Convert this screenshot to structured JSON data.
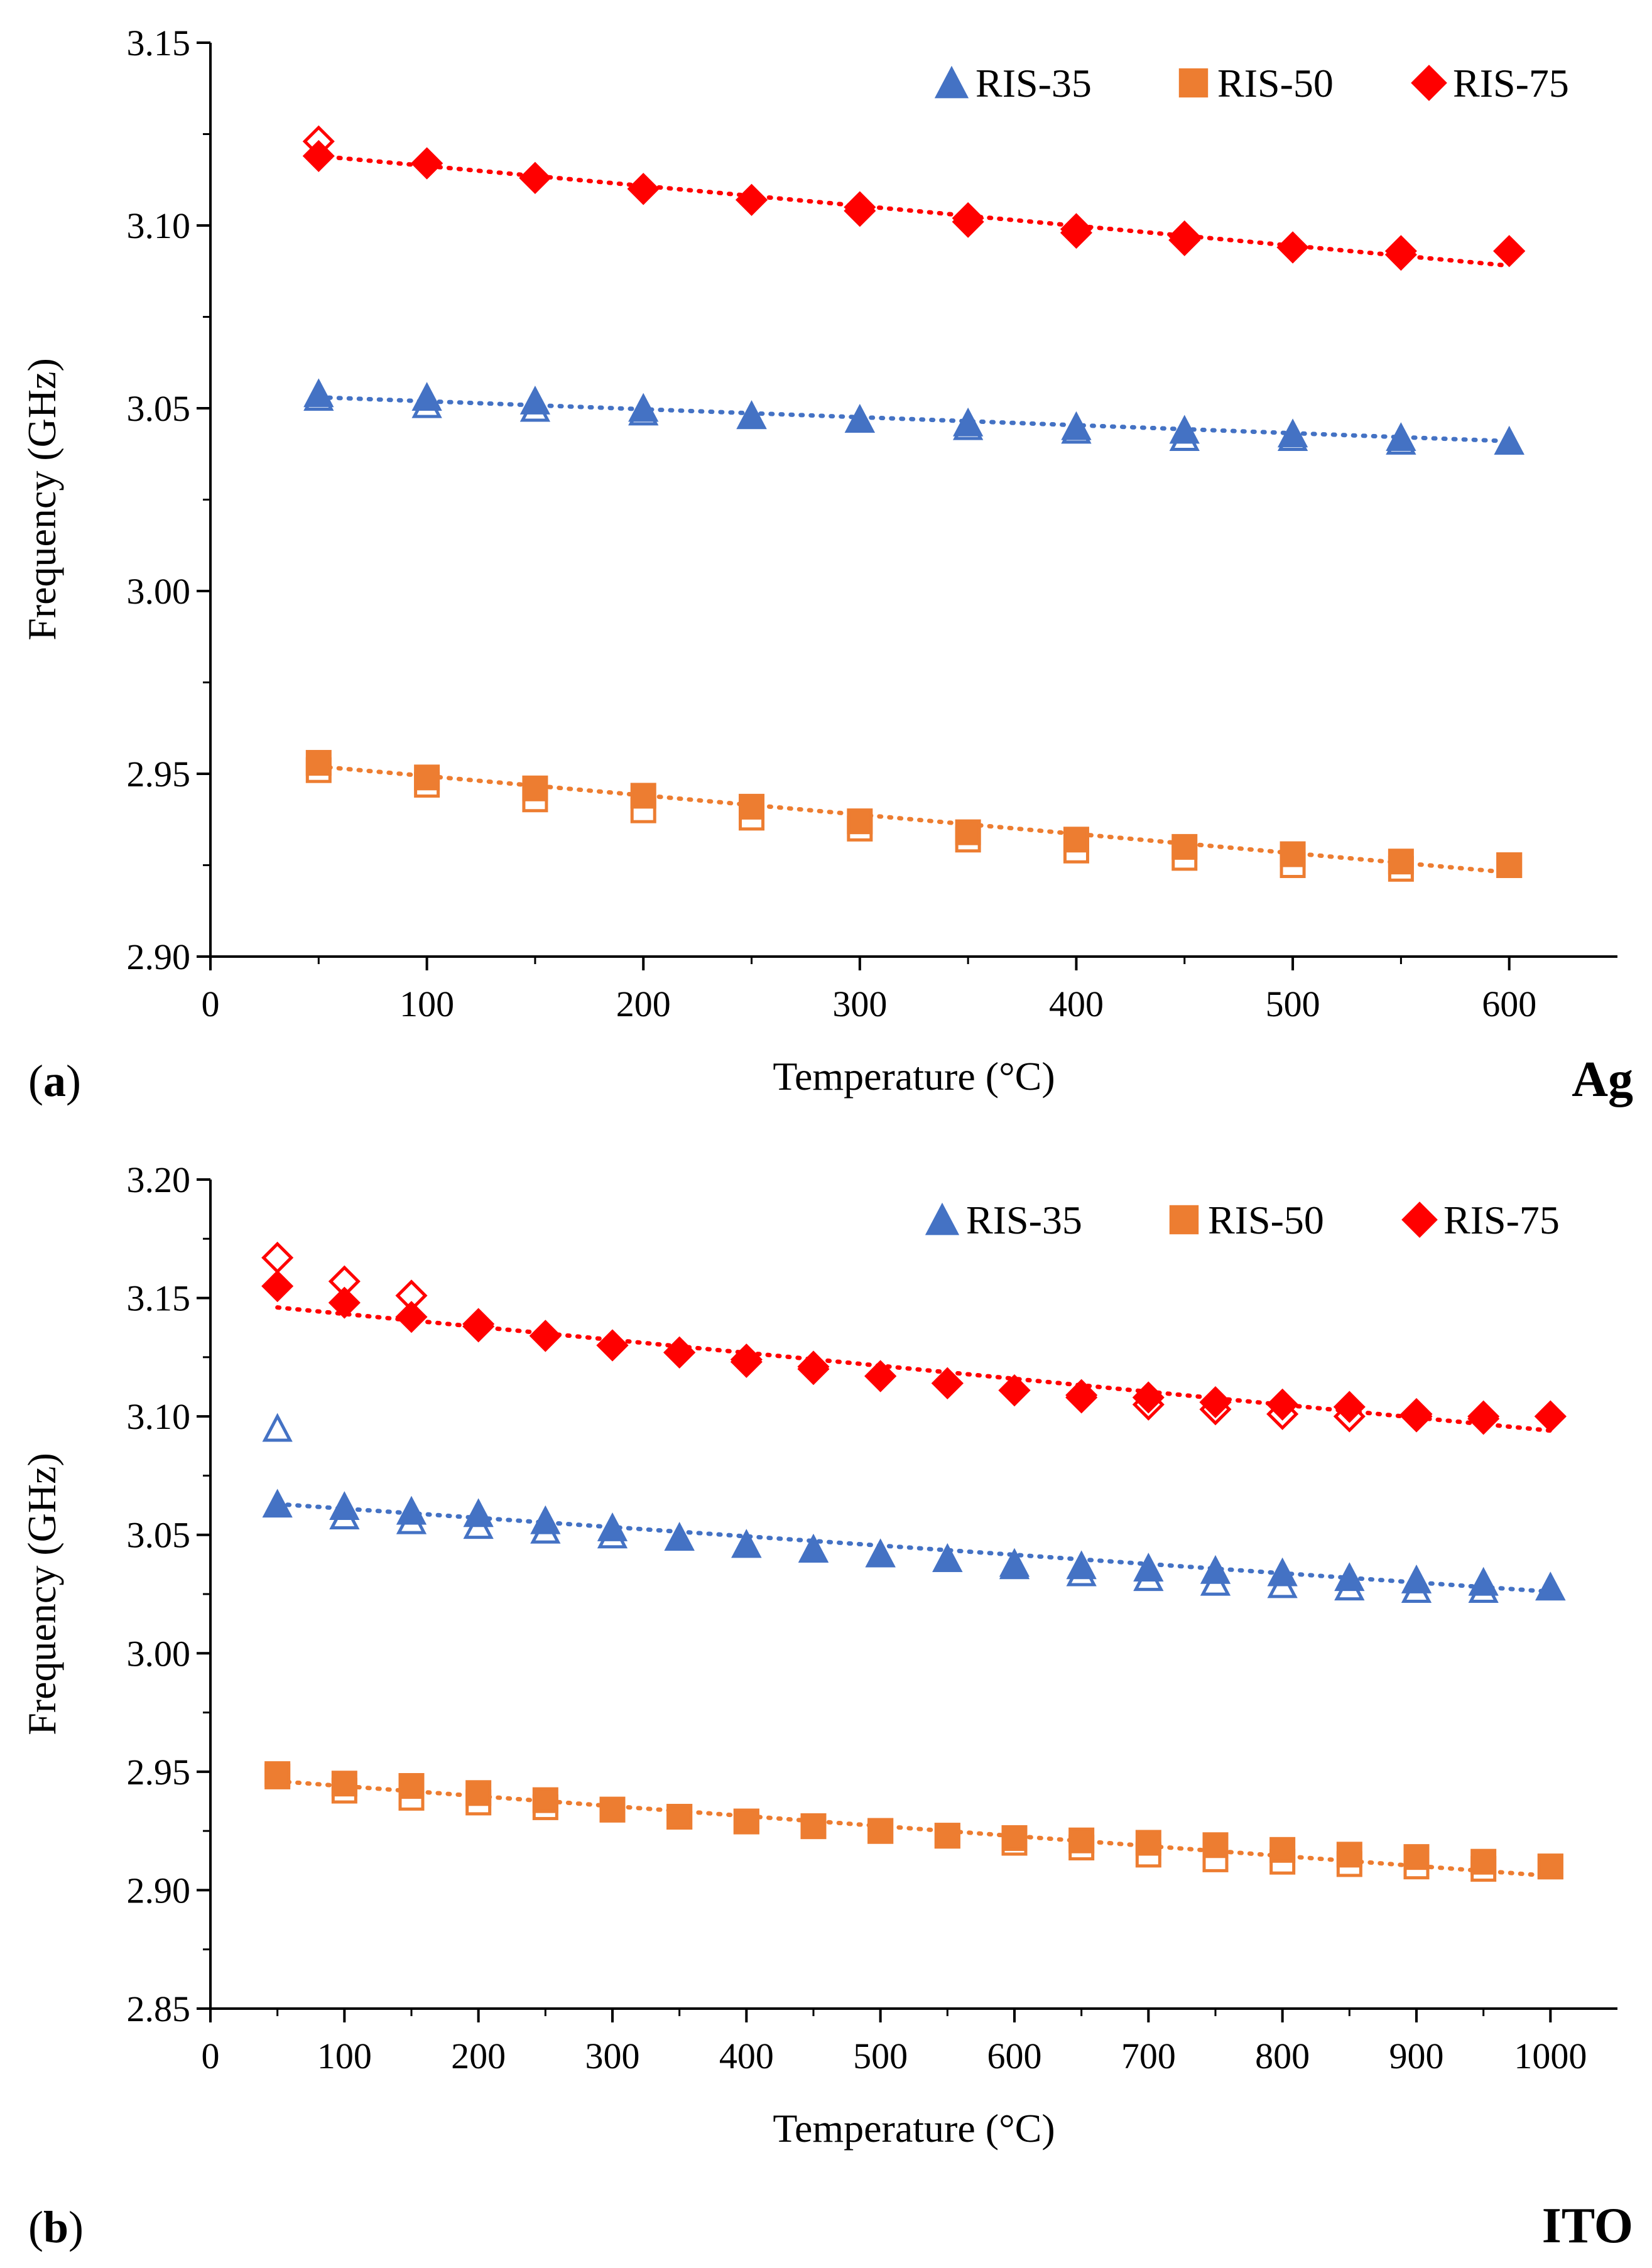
{
  "chart_data": [
    {
      "type": "scatter",
      "panel_label": "a",
      "material": "Ag",
      "xlabel": "Temperature (°C)",
      "ylabel": "Frequency (GHz)",
      "xlim": [
        0,
        650
      ],
      "ylim": [
        2.9,
        3.15
      ],
      "xticks": [
        "0",
        "100",
        "200",
        "300",
        "400",
        "500",
        "600"
      ],
      "yticks": [
        "2.90",
        "2.95",
        "3.00",
        "3.05",
        "3.10",
        "3.15"
      ],
      "legend_position": "top-right",
      "grid": false,
      "x": [
        50,
        100,
        150,
        200,
        250,
        300,
        350,
        400,
        450,
        500,
        550,
        600
      ],
      "series": [
        {
          "name": "RIS-35",
          "marker": "triangle",
          "color": "#4472C4",
          "filled": [
            3.054,
            3.053,
            3.052,
            3.05,
            3.048,
            3.047,
            3.046,
            3.045,
            3.044,
            3.043,
            3.042,
            3.041
          ],
          "hollow": [
            3.053,
            3.051,
            3.05,
            3.049,
            3.048,
            3.047,
            3.045,
            3.044,
            3.042,
            3.042,
            3.041,
            3.041
          ],
          "trend": [
            3.053,
            3.041
          ]
        },
        {
          "name": "RIS-50",
          "marker": "square",
          "color": "#ED7D31",
          "filled": [
            2.953,
            2.949,
            2.946,
            2.944,
            2.941,
            2.937,
            2.934,
            2.932,
            2.93,
            2.928,
            2.926,
            2.925
          ],
          "hollow": [
            2.951,
            2.947,
            2.943,
            2.94,
            2.938,
            2.935,
            2.932,
            2.929,
            2.927,
            2.925,
            2.924,
            2.925
          ],
          "trend": [
            2.952,
            2.923
          ]
        },
        {
          "name": "RIS-75",
          "marker": "diamond",
          "color": "#FF0000",
          "filled": [
            3.119,
            3.117,
            3.113,
            3.11,
            3.107,
            3.105,
            3.102,
            3.099,
            3.097,
            3.094,
            3.093,
            3.093
          ],
          "hollow": [
            3.123,
            3.117,
            3.113,
            3.11,
            3.107,
            3.104,
            3.101,
            3.098,
            3.096,
            3.094,
            3.092,
            3.093
          ],
          "trend": [
            3.119,
            3.089
          ]
        }
      ]
    },
    {
      "type": "scatter",
      "panel_label": "b",
      "material": "ITO",
      "xlabel": "Temperature (°C)",
      "ylabel": "Frequency (GHz)",
      "xlim": [
        0,
        1050
      ],
      "ylim": [
        2.85,
        3.2
      ],
      "xticks": [
        "0",
        "100",
        "200",
        "300",
        "400",
        "500",
        "600",
        "700",
        "800",
        "900",
        "1000"
      ],
      "yticks": [
        "2.85",
        "2.90",
        "2.95",
        "3.00",
        "3.05",
        "3.10",
        "3.15",
        "3.20"
      ],
      "legend_position": "top-right",
      "grid": false,
      "x": [
        50,
        100,
        150,
        200,
        250,
        300,
        350,
        400,
        450,
        500,
        550,
        600,
        650,
        700,
        750,
        800,
        850,
        900,
        950,
        1000
      ],
      "series": [
        {
          "name": "RIS-35",
          "marker": "triangle",
          "color": "#4472C4",
          "filled": [
            3.063,
            3.062,
            3.06,
            3.059,
            3.056,
            3.053,
            3.049,
            3.046,
            3.044,
            3.042,
            3.04,
            3.038,
            3.037,
            3.036,
            3.035,
            3.034,
            3.032,
            3.031,
            3.03,
            3.028
          ],
          "hollow": [
            3.095,
            3.058,
            3.056,
            3.054,
            3.052,
            3.05,
            3.049,
            3.046,
            3.044,
            3.042,
            3.04,
            3.037,
            3.034,
            3.032,
            3.03,
            3.029,
            3.028,
            3.027,
            3.027,
            3.028
          ],
          "trend": [
            3.063,
            3.026
          ]
        },
        {
          "name": "RIS-50",
          "marker": "square",
          "color": "#ED7D31",
          "filled": [
            2.949,
            2.945,
            2.944,
            2.941,
            2.938,
            2.934,
            2.931,
            2.929,
            2.927,
            2.925,
            2.923,
            2.922,
            2.921,
            2.92,
            2.919,
            2.917,
            2.915,
            2.914,
            2.912,
            2.91
          ],
          "hollow": [
            2.948,
            2.942,
            2.939,
            2.937,
            2.935,
            2.934,
            2.931,
            2.929,
            2.927,
            2.925,
            2.923,
            2.92,
            2.918,
            2.915,
            2.913,
            2.912,
            2.911,
            2.91,
            2.909,
            2.91
          ],
          "trend": [
            2.946,
            2.906
          ]
        },
        {
          "name": "RIS-75",
          "marker": "diamond",
          "color": "#FF0000",
          "filled": [
            3.155,
            3.148,
            3.142,
            3.139,
            3.134,
            3.13,
            3.127,
            3.124,
            3.121,
            3.117,
            3.114,
            3.111,
            3.109,
            3.108,
            3.106,
            3.105,
            3.104,
            3.101,
            3.1,
            3.1
          ],
          "hollow": [
            3.167,
            3.157,
            3.151,
            3.138,
            3.134,
            3.13,
            3.127,
            3.123,
            3.12,
            3.117,
            3.114,
            3.111,
            3.108,
            3.105,
            3.103,
            3.101,
            3.1,
            3.1,
            3.099,
            3.1
          ],
          "trend": [
            3.146,
            3.094
          ]
        }
      ]
    }
  ]
}
